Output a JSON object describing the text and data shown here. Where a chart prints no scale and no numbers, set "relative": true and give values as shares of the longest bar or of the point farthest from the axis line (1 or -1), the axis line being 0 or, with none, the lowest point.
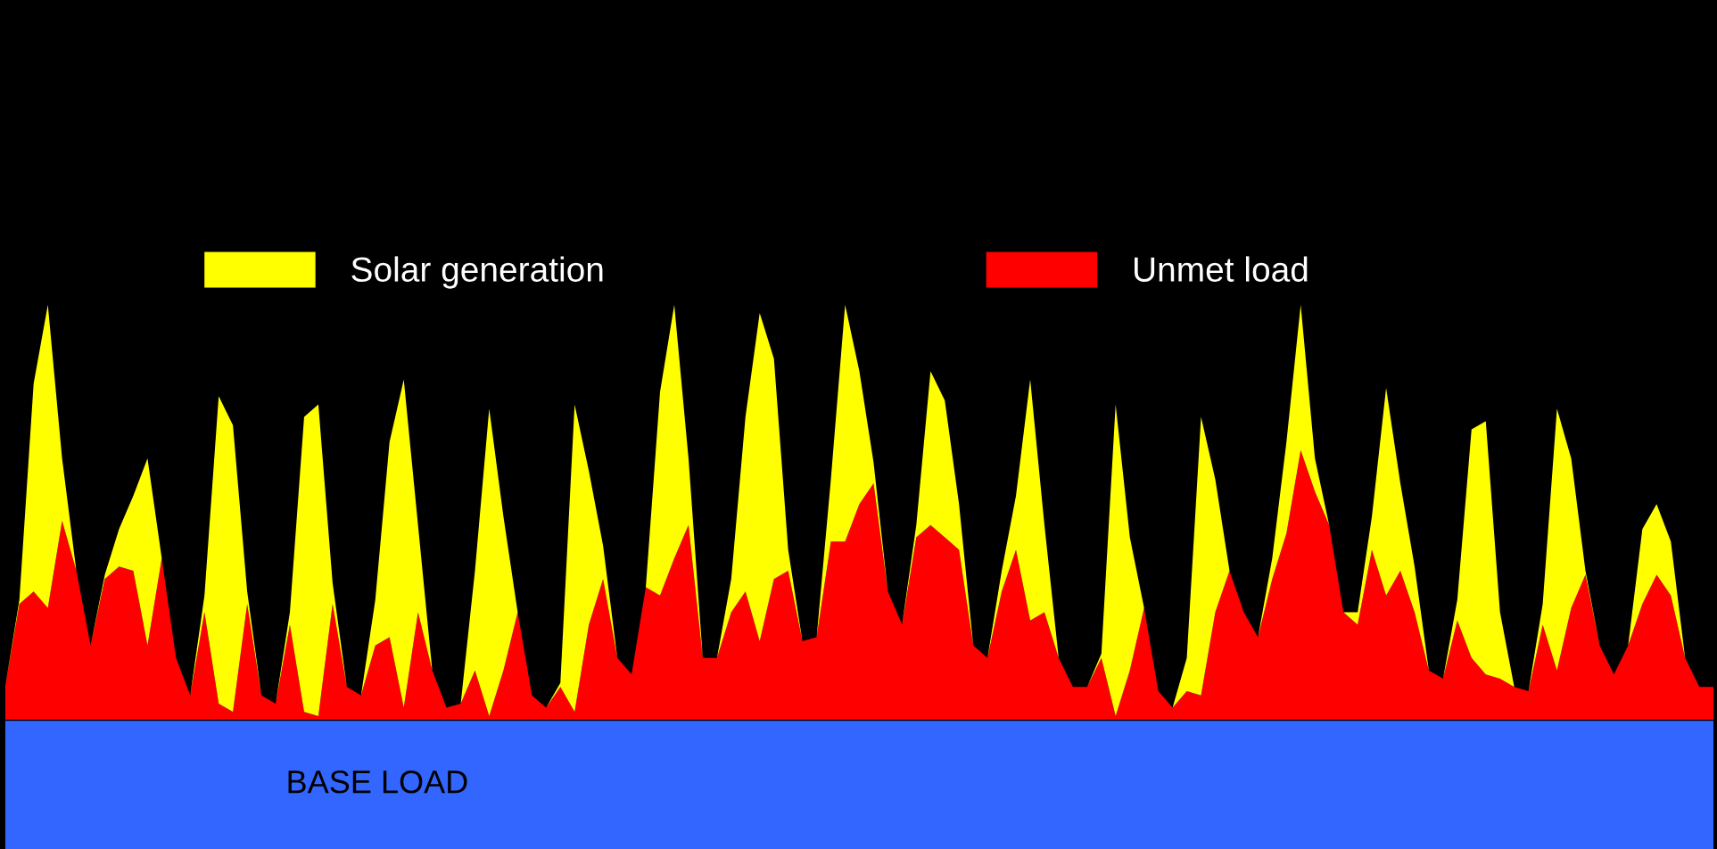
{
  "chart_data": {
    "type": "area",
    "stacked": true,
    "relative": true,
    "legend": "top",
    "categories": [
      null,
      null,
      null,
      null,
      null,
      null,
      null,
      null,
      null,
      null,
      null,
      null,
      null,
      null,
      null,
      null,
      null,
      null,
      null,
      null,
      null,
      null,
      null,
      null,
      null,
      null,
      null,
      null,
      null,
      null,
      null,
      null,
      null,
      null,
      null,
      null,
      null,
      null,
      null,
      null,
      null,
      null,
      null,
      null,
      null,
      null,
      null,
      null,
      null,
      null,
      null,
      null,
      null,
      null,
      null,
      null,
      null,
      null,
      null,
      null,
      null,
      null,
      null,
      null,
      null,
      null,
      null,
      null,
      null,
      null,
      null,
      null,
      null,
      null,
      null,
      null,
      null,
      null,
      null,
      null,
      null,
      null,
      null,
      null,
      null,
      null,
      null,
      null,
      null,
      null,
      null,
      null,
      null,
      null,
      null,
      null,
      null,
      null,
      null,
      null,
      null,
      null,
      null,
      null,
      null,
      null,
      null,
      null,
      null,
      null,
      null,
      null,
      null,
      null,
      null,
      null,
      null,
      null,
      null,
      null,
      null
    ],
    "bands": [
      {
        "axis": "y",
        "from": -0.31,
        "to": 0,
        "label": "BASE LOAD",
        "color": "#3366ff"
      }
    ],
    "series": [
      {
        "name": "Unmet load",
        "color": "#ff0000",
        "values": [
          0.08,
          0.28,
          0.31,
          0.27,
          0.48,
          0.36,
          0.18,
          0.34,
          0.37,
          0.36,
          0.18,
          0.39,
          0.15,
          0.06,
          0.26,
          0.04,
          0.02,
          0.28,
          0.06,
          0.04,
          0.23,
          0.02,
          0.01,
          0.28,
          0.08,
          0.06,
          0.18,
          0.2,
          0.03,
          0.26,
          0.12,
          0.03,
          0.04,
          0.12,
          0.01,
          0.12,
          0.26,
          0.06,
          0.03,
          0.08,
          0.02,
          0.23,
          0.34,
          0.15,
          0.11,
          0.32,
          0.3,
          0.39,
          0.47,
          0.15,
          0.15,
          0.26,
          0.31,
          0.19,
          0.34,
          0.36,
          0.19,
          0.2,
          0.43,
          0.43,
          0.52,
          0.57,
          0.31,
          0.23,
          0.44,
          0.47,
          0.44,
          0.41,
          0.18,
          0.15,
          0.31,
          0.41,
          0.24,
          0.26,
          0.15,
          0.08,
          0.08,
          0.15,
          0.01,
          0.12,
          0.27,
          0.07,
          0.03,
          0.07,
          0.06,
          0.26,
          0.36,
          0.26,
          0.2,
          0.34,
          0.45,
          0.65,
          0.55,
          0.47,
          0.26,
          0.23,
          0.41,
          0.3,
          0.36,
          0.26,
          0.12,
          0.1,
          0.24,
          0.15,
          0.11,
          0.1,
          0.08,
          0.07,
          0.23,
          0.12,
          0.27,
          0.35,
          0.18,
          0.11,
          0.18,
          0.28,
          0.35,
          0.3,
          0.15,
          0.08,
          0.08
        ]
      },
      {
        "name": "Solar generation",
        "color": "#ffff00",
        "values": [
          0,
          0.01,
          0.5,
          0.73,
          0.15,
          0,
          0,
          0.01,
          0.09,
          0.18,
          0.45,
          0,
          0,
          0,
          0.04,
          0.74,
          0.69,
          0.03,
          0,
          0,
          0.03,
          0.71,
          0.75,
          0.05,
          0,
          0,
          0.11,
          0.47,
          0.79,
          0.21,
          0,
          0,
          0,
          0.24,
          0.74,
          0.37,
          0,
          0,
          0,
          0.01,
          0.74,
          0.37,
          0.08,
          0,
          0,
          0,
          0.49,
          0.61,
          0.16,
          0,
          0,
          0.08,
          0.42,
          0.79,
          0.53,
          0.05,
          0,
          0,
          0.15,
          0.57,
          0.32,
          0.05,
          0,
          0,
          0.03,
          0.37,
          0.33,
          0.11,
          0,
          0,
          0.05,
          0.13,
          0.58,
          0.21,
          0,
          0,
          0,
          0.01,
          0.75,
          0.32,
          0,
          0,
          0,
          0.08,
          0.67,
          0.32,
          0,
          0,
          0,
          0.05,
          0.22,
          0.35,
          0.08,
          0,
          0,
          0.03,
          0.08,
          0.5,
          0.21,
          0.11,
          0,
          0,
          0.05,
          0.55,
          0.61,
          0.16,
          0,
          0,
          0.05,
          0.63,
          0.36,
          0.01,
          0,
          0,
          0,
          0.18,
          0.17,
          0.13,
          0,
          0,
          0
        ]
      }
    ]
  }
}
